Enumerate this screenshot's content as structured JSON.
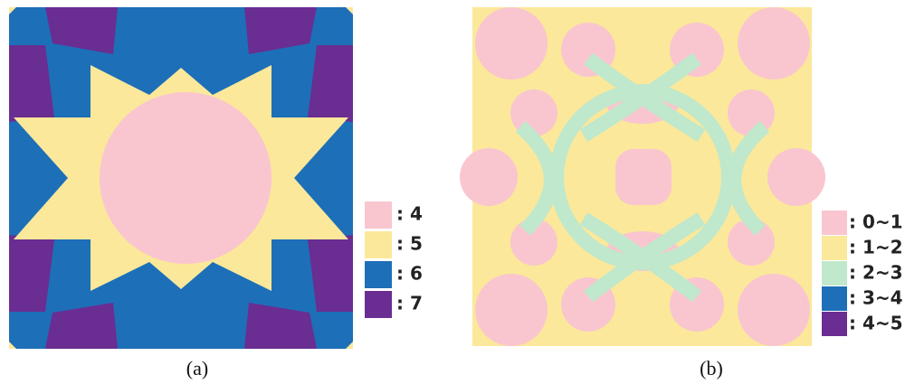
{
  "panels": [
    {
      "legend": [
        ": 4",
        ": 5",
        ": 6",
        ": 7"
      ],
      "caption": "(a)"
    },
    {
      "legend": [
        ": 0~1",
        ": 1~2",
        ": 2~3",
        ": 3~4",
        ": 4~5"
      ],
      "caption": "(b)"
    }
  ]
}
